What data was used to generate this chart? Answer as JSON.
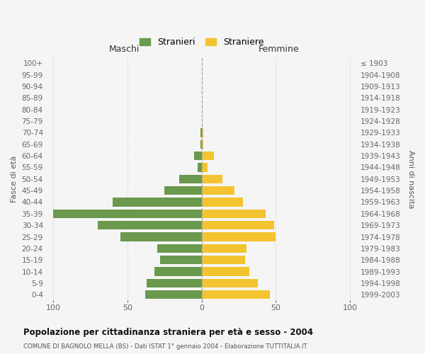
{
  "age_groups_bottom_to_top": [
    "0-4",
    "5-9",
    "10-14",
    "15-19",
    "20-24",
    "25-29",
    "30-34",
    "35-39",
    "40-44",
    "45-49",
    "50-54",
    "55-59",
    "60-64",
    "65-69",
    "70-74",
    "75-79",
    "80-84",
    "85-89",
    "90-94",
    "95-99",
    "100+"
  ],
  "birth_years_bottom_to_top": [
    "1999-2003",
    "1994-1998",
    "1989-1993",
    "1984-1988",
    "1979-1983",
    "1974-1978",
    "1969-1973",
    "1964-1968",
    "1959-1963",
    "1954-1958",
    "1949-1953",
    "1944-1948",
    "1939-1943",
    "1934-1938",
    "1929-1933",
    "1924-1928",
    "1919-1923",
    "1914-1918",
    "1909-1913",
    "1904-1908",
    "≤ 1903"
  ],
  "males_bottom_to_top": [
    38,
    37,
    32,
    28,
    30,
    55,
    70,
    100,
    60,
    25,
    15,
    3,
    5,
    1,
    1,
    0,
    0,
    0,
    0,
    0,
    0
  ],
  "females_bottom_to_top": [
    46,
    38,
    32,
    29,
    30,
    50,
    49,
    43,
    28,
    22,
    14,
    4,
    8,
    1,
    1,
    0,
    0,
    0,
    0,
    0,
    0
  ],
  "male_color": "#6a994e",
  "female_color": "#f4c430",
  "male_label": "Stranieri",
  "female_label": "Straniere",
  "title": "Popolazione per cittadinanza straniera per età e sesso - 2004",
  "subtitle": "COMUNE DI BAGNOLO MELLA (BS) - Dati ISTAT 1° gennaio 2004 - Elaborazione TUTTITALIA.IT",
  "left_header": "Maschi",
  "right_header": "Femmine",
  "ylabel_left": "Fasce di età",
  "ylabel_right": "Anni di nascita",
  "xlim": [
    -105,
    105
  ],
  "xticks": [
    -100,
    -50,
    0,
    50,
    100
  ],
  "xticklabels": [
    "100",
    "50",
    "0",
    "50",
    "100"
  ],
  "bg_color": "#f5f5f5",
  "grid_color": "#cccccc"
}
